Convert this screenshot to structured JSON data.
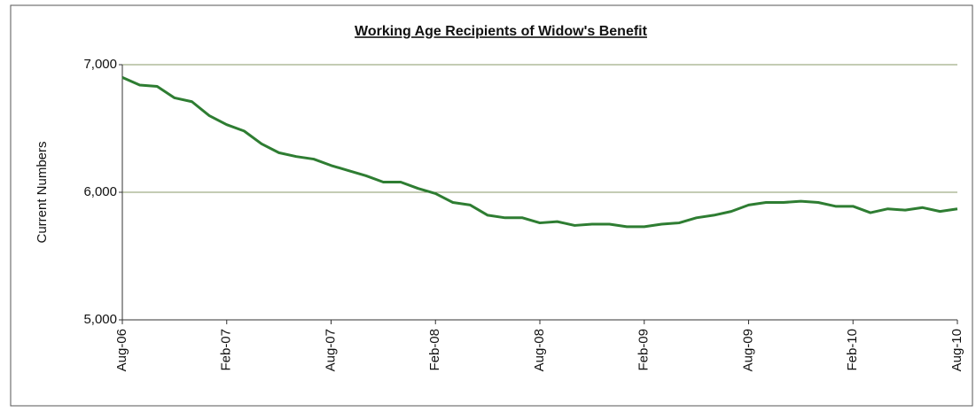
{
  "chart_data": {
    "type": "line",
    "title": "Working Age Recipients of Widow's Benefit",
    "y_label": "Current Numbers",
    "categories": [
      "Aug-06",
      null,
      null,
      null,
      null,
      null,
      "Feb-07",
      null,
      null,
      null,
      null,
      null,
      "Aug-07",
      null,
      null,
      null,
      null,
      null,
      "Feb-08",
      null,
      null,
      null,
      null,
      null,
      "Aug-08",
      null,
      null,
      null,
      null,
      null,
      "Feb-09",
      null,
      null,
      null,
      null,
      null,
      "Aug-09",
      null,
      null,
      null,
      null,
      null,
      "Feb-10",
      null,
      null,
      null,
      null,
      null,
      "Aug-10"
    ],
    "series": [
      {
        "name": "Current Numbers",
        "color": "#2e7d32",
        "values": [
          6900,
          6840,
          6830,
          6740,
          6710,
          6600,
          6530,
          6480,
          6380,
          6310,
          6280,
          6260,
          6210,
          6170,
          6130,
          6080,
          6080,
          6030,
          5990,
          5920,
          5900,
          5820,
          5800,
          5800,
          5760,
          5770,
          5740,
          5750,
          5750,
          5730,
          5730,
          5750,
          5760,
          5800,
          5820,
          5850,
          5900,
          5920,
          5920,
          5930,
          5920,
          5890,
          5890,
          5840,
          5870,
          5860,
          5880,
          5850,
          5870
        ]
      }
    ],
    "ylim": [
      5000,
      7000
    ],
    "yticks": [
      {
        "value": 5000,
        "label": "5,000"
      },
      {
        "value": 6000,
        "label": "6,000"
      },
      {
        "value": 7000,
        "label": "7,000"
      }
    ],
    "grid": true
  }
}
